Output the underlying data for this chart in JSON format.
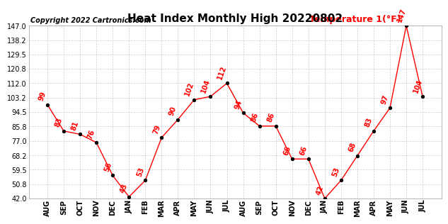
{
  "title": "Heat Index Monthly High 20220802",
  "copyright": "Copyright 2022 Cartronics.com",
  "legend_label": "Temperature 1(°F)",
  "months": [
    "AUG",
    "SEP",
    "OCT",
    "NOV",
    "DEC",
    "JAN",
    "FEB",
    "MAR",
    "APR",
    "MAY",
    "JUN",
    "JUL",
    "AUG",
    "SEP",
    "OCT",
    "NOV",
    "DEC",
    "JAN",
    "FEB",
    "MAR",
    "APR",
    "MAY",
    "JUN",
    "JUL"
  ],
  "values": [
    99,
    83,
    81,
    76,
    56,
    43,
    53,
    79,
    90,
    102,
    104,
    112,
    94,
    86,
    86,
    66,
    66,
    42,
    53,
    68,
    83,
    97,
    147,
    104
  ],
  "line_color": "red",
  "marker_color": "black",
  "label_color": "red",
  "background_color": "white",
  "grid_color": "#cccccc",
  "ylim": [
    42.0,
    147.0
  ],
  "yticks": [
    42.0,
    50.8,
    59.5,
    68.2,
    77.0,
    85.8,
    94.5,
    103.2,
    112.0,
    120.8,
    129.5,
    138.2,
    147.0
  ],
  "title_fontsize": 11,
  "copyright_fontsize": 7,
  "legend_fontsize": 9,
  "label_fontsize": 7,
  "tick_fontsize": 7
}
